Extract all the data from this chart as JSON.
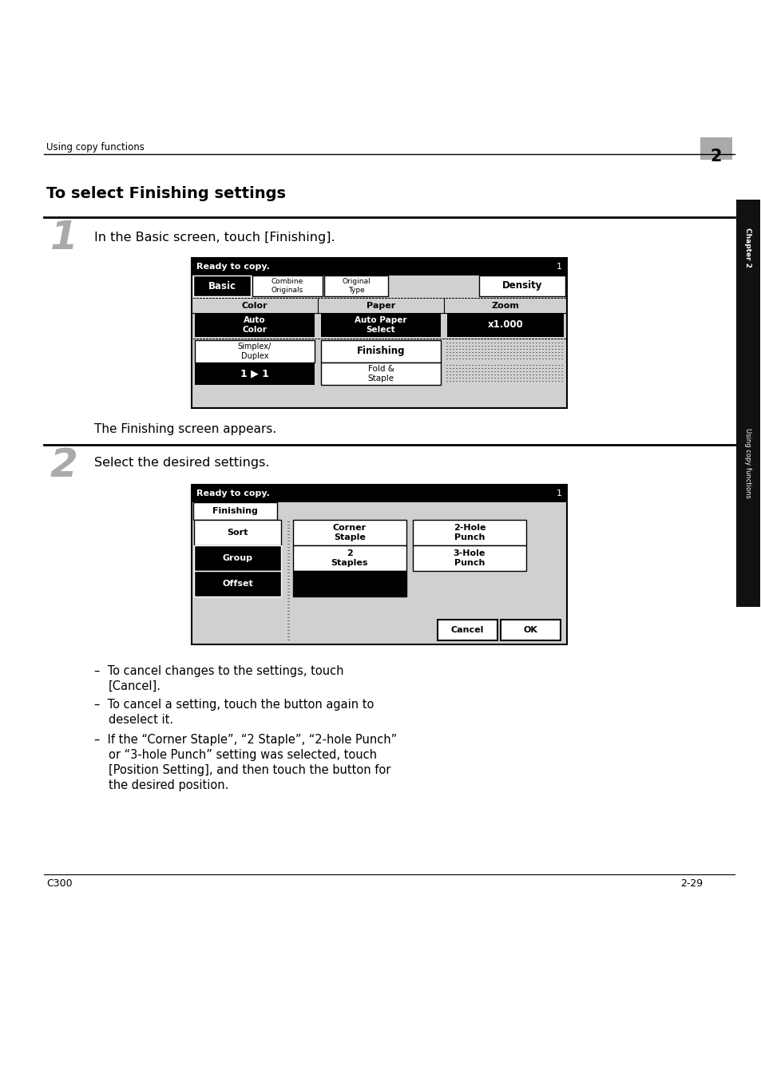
{
  "bg_color": "#ffffff",
  "header_text": "Using copy functions",
  "header_number": "2",
  "title": "To select Finishing settings",
  "step1_number": "1",
  "step1_text": "In the Basic screen, touch [Finishing].",
  "step1_subtext": "The Finishing screen appears.",
  "step2_number": "2",
  "step2_text": "Select the desired settings.",
  "footer_left": "C300",
  "footer_right": "2-29",
  "sidebar_text": "Using copy functions",
  "chapter_label": "Chapter 2"
}
